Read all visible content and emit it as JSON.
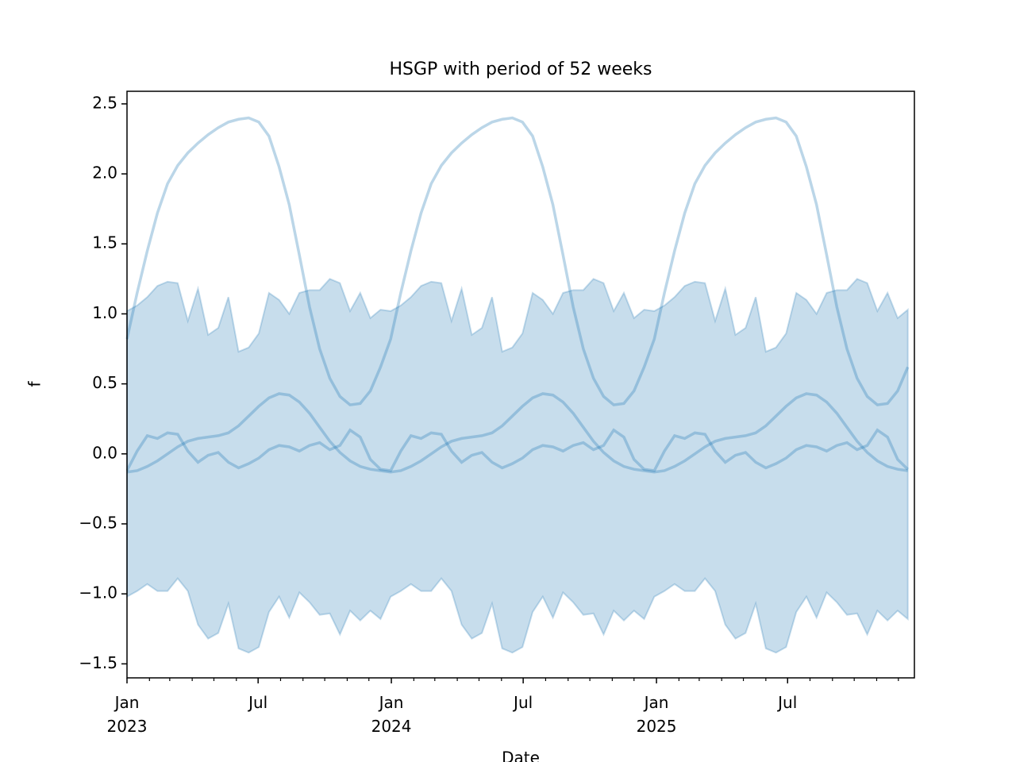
{
  "chart_data": {
    "type": "line",
    "title": "HSGP with period of 52 weeks",
    "x_label": "Date",
    "y_label": "f",
    "x": [
      0,
      2,
      4,
      6,
      8,
      10,
      12,
      14,
      16,
      18,
      20,
      22,
      24,
      26,
      28,
      30,
      32,
      34,
      36,
      38,
      40,
      42,
      44,
      46,
      48,
      50,
      52,
      54,
      56,
      58,
      60,
      62,
      64,
      66,
      68,
      70,
      72,
      74,
      76,
      78,
      80,
      82,
      84,
      86,
      88,
      90,
      92,
      94,
      96,
      98,
      100,
      102,
      104,
      106,
      108,
      110,
      112,
      114,
      116,
      118,
      120,
      122,
      124,
      126,
      128,
      130,
      132,
      134,
      136,
      138,
      140,
      142,
      144,
      146,
      148,
      150,
      152,
      154
    ],
    "band": {
      "color": "#1f77b4",
      "upper": [
        1.02,
        1.06,
        1.12,
        1.2,
        1.23,
        1.22,
        0.95,
        1.18,
        0.85,
        0.9,
        1.12,
        0.73,
        0.76,
        0.86,
        1.15,
        1.1,
        1.0,
        1.15,
        1.17,
        1.17,
        1.25,
        1.22,
        1.02,
        1.15,
        0.97,
        1.03,
        1.02,
        1.06,
        1.12,
        1.2,
        1.23,
        1.22,
        0.95,
        1.18,
        0.85,
        0.9,
        1.12,
        0.73,
        0.76,
        0.86,
        1.15,
        1.1,
        1.0,
        1.15,
        1.17,
        1.17,
        1.25,
        1.22,
        1.02,
        1.15,
        0.97,
        1.03,
        1.02,
        1.06,
        1.12,
        1.2,
        1.23,
        1.22,
        0.95,
        1.18,
        0.85,
        0.9,
        1.12,
        0.73,
        0.76,
        0.86,
        1.15,
        1.1,
        1.0,
        1.15,
        1.17,
        1.17,
        1.25,
        1.22,
        1.02,
        1.15,
        0.97,
        1.03
      ],
      "lower": [
        -1.02,
        -0.98,
        -0.93,
        -0.98,
        -0.98,
        -0.89,
        -0.98,
        -1.22,
        -1.32,
        -1.28,
        -1.07,
        -1.39,
        -1.42,
        -1.38,
        -1.13,
        -1.02,
        -1.17,
        -0.99,
        -1.06,
        -1.15,
        -1.14,
        -1.29,
        -1.12,
        -1.19,
        -1.12,
        -1.18,
        -1.02,
        -0.98,
        -0.93,
        -0.98,
        -0.98,
        -0.89,
        -0.98,
        -1.22,
        -1.32,
        -1.28,
        -1.07,
        -1.39,
        -1.42,
        -1.38,
        -1.13,
        -1.02,
        -1.17,
        -0.99,
        -1.06,
        -1.15,
        -1.14,
        -1.29,
        -1.12,
        -1.19,
        -1.12,
        -1.18,
        -1.02,
        -0.98,
        -0.93,
        -0.98,
        -0.98,
        -0.89,
        -0.98,
        -1.22,
        -1.32,
        -1.28,
        -1.07,
        -1.39,
        -1.42,
        -1.38,
        -1.13,
        -1.02,
        -1.17,
        -0.99,
        -1.06,
        -1.15,
        -1.14,
        -1.29,
        -1.12,
        -1.19,
        -1.12,
        -1.18
      ]
    },
    "series": [
      {
        "color": "#1f77b4",
        "values": [
          0.82,
          1.15,
          1.45,
          1.72,
          1.93,
          2.06,
          2.15,
          2.22,
          2.28,
          2.33,
          2.37,
          2.39,
          2.4,
          2.37,
          2.27,
          2.05,
          1.78,
          1.42,
          1.05,
          0.75,
          0.54,
          0.41,
          0.35,
          0.36,
          0.45,
          0.62,
          0.82,
          1.15,
          1.45,
          1.72,
          1.93,
          2.06,
          2.15,
          2.22,
          2.28,
          2.33,
          2.37,
          2.39,
          2.4,
          2.37,
          2.27,
          2.05,
          1.78,
          1.42,
          1.05,
          0.75,
          0.54,
          0.41,
          0.35,
          0.36,
          0.45,
          0.62,
          0.82,
          1.15,
          1.45,
          1.72,
          1.93,
          2.06,
          2.15,
          2.22,
          2.28,
          2.33,
          2.37,
          2.39,
          2.4,
          2.37,
          2.27,
          2.05,
          1.78,
          1.42,
          1.05,
          0.75,
          0.54,
          0.41,
          0.35,
          0.36,
          0.45,
          0.62
        ]
      },
      {
        "color": "#1f77b4",
        "values": [
          -0.13,
          -0.12,
          -0.09,
          -0.05,
          0.0,
          0.05,
          0.09,
          0.11,
          0.12,
          0.13,
          0.15,
          0.2,
          0.27,
          0.34,
          0.4,
          0.43,
          0.42,
          0.37,
          0.29,
          0.19,
          0.09,
          0.01,
          -0.05,
          -0.09,
          -0.11,
          -0.12,
          -0.13,
          -0.12,
          -0.09,
          -0.05,
          0.0,
          0.05,
          0.09,
          0.11,
          0.12,
          0.13,
          0.15,
          0.2,
          0.27,
          0.34,
          0.4,
          0.43,
          0.42,
          0.37,
          0.29,
          0.19,
          0.09,
          0.01,
          -0.05,
          -0.09,
          -0.11,
          -0.12,
          -0.13,
          -0.12,
          -0.09,
          -0.05,
          0.0,
          0.05,
          0.09,
          0.11,
          0.12,
          0.13,
          0.15,
          0.2,
          0.27,
          0.34,
          0.4,
          0.43,
          0.42,
          0.37,
          0.29,
          0.19,
          0.09,
          0.01,
          -0.05,
          -0.09,
          -0.11,
          -0.12
        ]
      },
      {
        "color": "#1f77b4",
        "values": [
          -0.12,
          0.02,
          0.13,
          0.11,
          0.15,
          0.14,
          0.02,
          -0.06,
          -0.01,
          0.01,
          -0.06,
          -0.1,
          -0.07,
          -0.03,
          0.03,
          0.06,
          0.05,
          0.02,
          0.06,
          0.08,
          0.03,
          0.06,
          0.17,
          0.12,
          -0.04,
          -0.11,
          -0.12,
          0.02,
          0.13,
          0.11,
          0.15,
          0.14,
          0.02,
          -0.06,
          -0.01,
          0.01,
          -0.06,
          -0.1,
          -0.07,
          -0.03,
          0.03,
          0.06,
          0.05,
          0.02,
          0.06,
          0.08,
          0.03,
          0.06,
          0.17,
          0.12,
          -0.04,
          -0.11,
          -0.12,
          0.02,
          0.13,
          0.11,
          0.15,
          0.14,
          0.02,
          -0.06,
          -0.01,
          0.01,
          -0.06,
          -0.1,
          -0.07,
          -0.03,
          0.03,
          0.06,
          0.05,
          0.02,
          0.06,
          0.08,
          0.03,
          0.06,
          0.17,
          0.12,
          -0.04,
          -0.11
        ]
      }
    ],
    "xlim": [
      0,
      155.3
    ],
    "xticks": [
      {
        "value": 0,
        "label": "Jan\n2023"
      },
      {
        "value": 25.86,
        "label": "Jul"
      },
      {
        "value": 52.14,
        "label": "Jan\n2024"
      },
      {
        "value": 78.14,
        "label": "Jul"
      },
      {
        "value": 104.43,
        "label": "Jan\n2025"
      },
      {
        "value": 130.29,
        "label": "Jul"
      }
    ],
    "xminorticks": [
      4.43,
      8.43,
      12.86,
      17.14,
      21.57,
      30.29,
      34.71,
      39,
      43.43,
      47.71,
      56.57,
      60.71,
      65.14,
      69.43,
      73.86,
      82.57,
      87,
      91.29,
      95.71,
      100,
      108.86,
      112.86,
      117.29,
      121.57,
      126,
      134.71,
      139.14,
      143.43,
      147.86,
      152.14
    ],
    "ylim": [
      -1.6,
      2.59
    ],
    "yticks": [
      {
        "value": -1.5,
        "label": "−1.5"
      },
      {
        "value": -1.0,
        "label": "−1.0"
      },
      {
        "value": -0.5,
        "label": "−0.5"
      },
      {
        "value": 0,
        "label": "0.0"
      },
      0.5,
      {
        "value": 1.0,
        "label": "1.0"
      },
      1.5,
      {
        "value": 2.0,
        "label": "2.0"
      },
      2.5
    ],
    "grid": false
  }
}
